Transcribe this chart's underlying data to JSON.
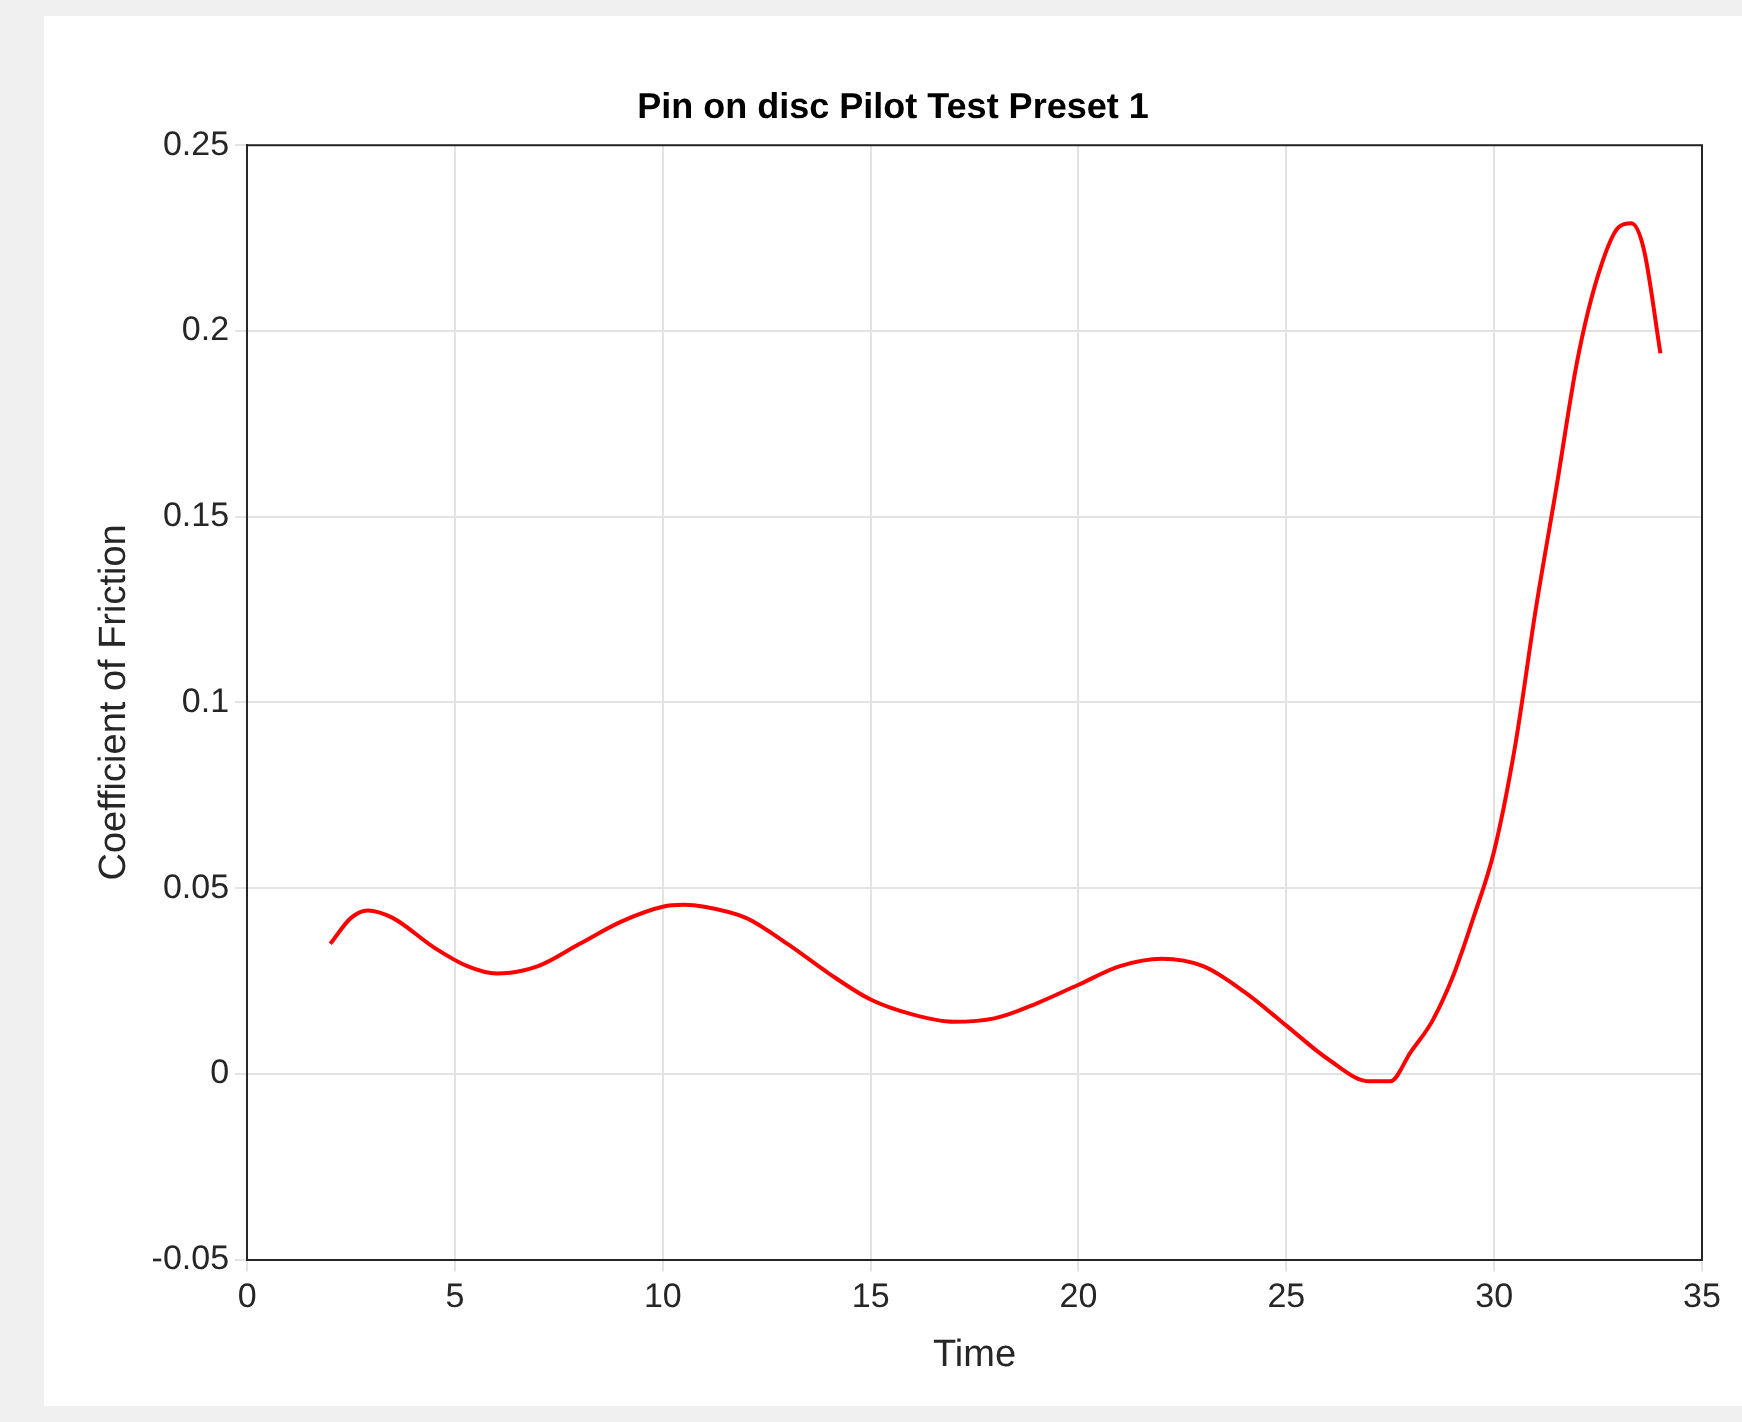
{
  "chart_data": {
    "type": "line",
    "title": "Pin on disc Pilot Test Preset 1",
    "xlabel": "Time",
    "ylabel": "Coefficient of Friction",
    "x": [
      2,
      2.5,
      2.9,
      3.5,
      4.5,
      5.3,
      6,
      7,
      8,
      9,
      10,
      10.5,
      11,
      12,
      13,
      14,
      15,
      16,
      17,
      18,
      19,
      20,
      21,
      22,
      23,
      24,
      25,
      26,
      27,
      27.5,
      28,
      28.5,
      29,
      29.5,
      30,
      30.5,
      31,
      31.5,
      32,
      32.5,
      33,
      33.3,
      33.6,
      34
    ],
    "series": [
      {
        "color": "#ff0000",
        "values": [
          0.035,
          0.042,
          0.044,
          0.042,
          0.034,
          0.029,
          0.027,
          0.029,
          0.035,
          0.041,
          0.045,
          0.0455,
          0.045,
          0.042,
          0.035,
          0.027,
          0.02,
          0.016,
          0.014,
          0.015,
          0.019,
          0.024,
          0.029,
          0.031,
          0.029,
          0.022,
          0.013,
          0.004,
          -0.002,
          -0.002,
          0.006,
          0.014,
          0.026,
          0.042,
          0.06,
          0.088,
          0.125,
          0.158,
          0.192,
          0.215,
          0.228,
          0.229,
          0.222,
          0.194
        ]
      }
    ],
    "xlim": [
      0,
      35
    ],
    "xticks": [
      0,
      5,
      10,
      15,
      20,
      25,
      30,
      35
    ],
    "ylim": [
      -0.05,
      0.25
    ],
    "yticks": [
      -0.05,
      0,
      0.05,
      0.1,
      0.15,
      0.2,
      0.25
    ],
    "grid": true,
    "legend": false,
    "marker": "none",
    "line_style": "solid"
  }
}
